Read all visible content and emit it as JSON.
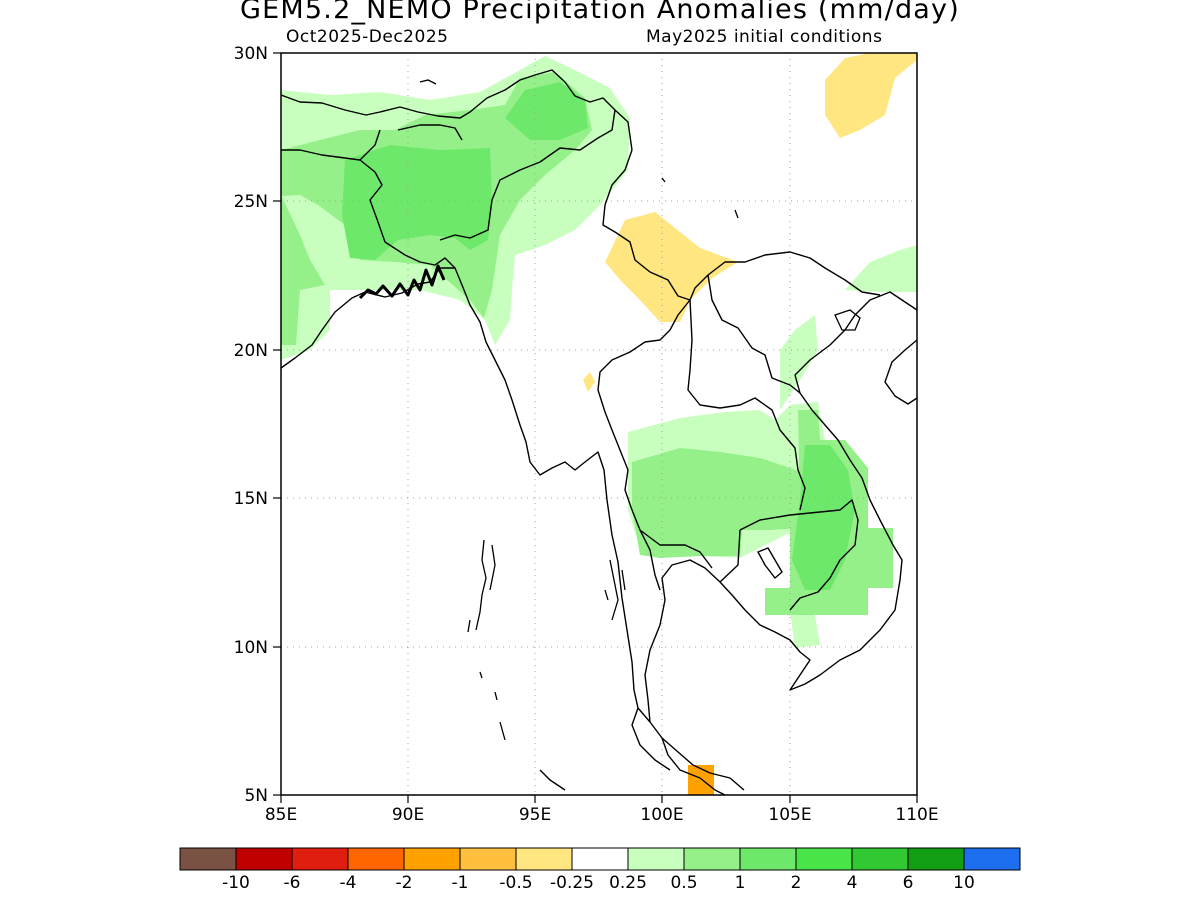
{
  "title": "GEM5.2_NEMO Precipitation Anomalies (mm/day)",
  "subtitle_left": "Oct2025-Dec2025",
  "subtitle_right": "May2025 initial conditions",
  "map": {
    "lon_range": [
      85,
      110
    ],
    "lat_range": [
      5,
      30
    ],
    "x_ticks": [
      "85E",
      "90E",
      "95E",
      "100E",
      "105E",
      "110E"
    ],
    "y_ticks": [
      "5N",
      "10N",
      "15N",
      "20N",
      "25N",
      "30N"
    ],
    "grid": "dotted"
  },
  "legend": {
    "colors": [
      "#7a5244",
      "#c00000",
      "#e01e10",
      "#ff6600",
      "#ffa200",
      "#ffc040",
      "#ffe680",
      "#ffffff",
      "#c8ffbe",
      "#95f08a",
      "#6ee86a",
      "#48e448",
      "#32c832",
      "#129e12",
      "#1e6ef0"
    ],
    "labels": [
      "-10",
      "-6",
      "-4",
      "-2",
      "-1",
      "-0.5",
      "-0.25",
      "0.25",
      "0.5",
      "1",
      "2",
      "4",
      "6",
      "10"
    ]
  }
}
